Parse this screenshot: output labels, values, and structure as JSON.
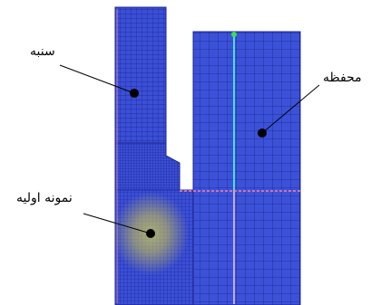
{
  "labels": {
    "punch": "سنبه",
    "container": "محفظه",
    "initial_sample": "نمونه اولیه"
  },
  "colors": {
    "mesh_fill": "#3a4fd6",
    "mesh_line": "#1a1f8c",
    "hot_spot": "#e8e23a",
    "center_line": "#46e0d8",
    "contact_line": "#ff7fa0",
    "background": "#ffffff"
  }
}
